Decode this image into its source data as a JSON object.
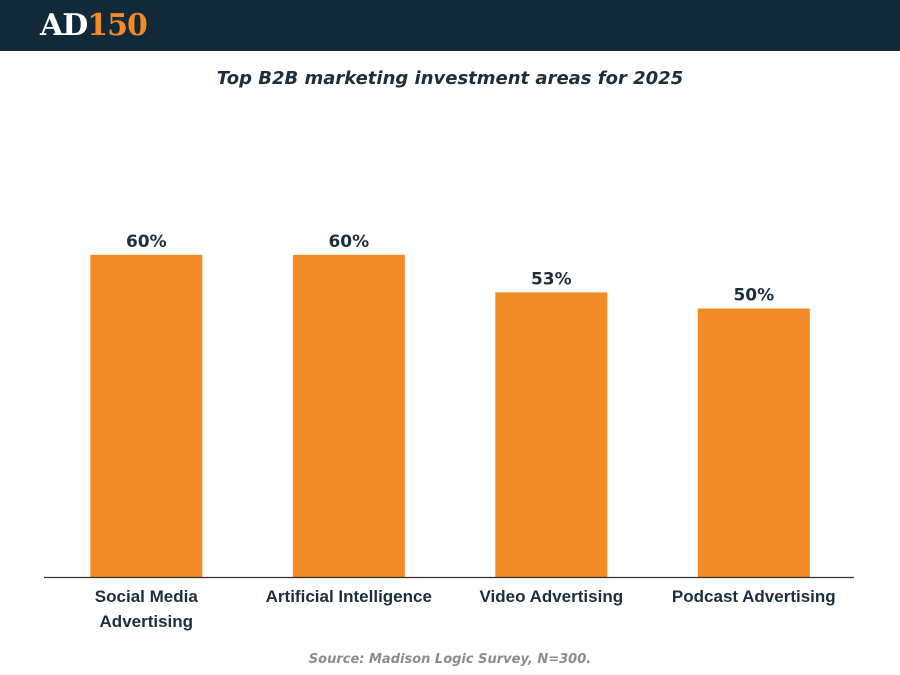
{
  "header": {
    "logo_primary": "AD",
    "logo_accent": "150",
    "background_color": "#12293a",
    "accent_color": "#f28a25"
  },
  "chart_data": {
    "type": "bar",
    "title": "Top B2B marketing investment areas for 2025",
    "categories": [
      [
        "Social Media",
        "Advertising"
      ],
      [
        "Artificial Intelligence"
      ],
      [
        "Video Advertising"
      ],
      [
        "Podcast Advertising"
      ]
    ],
    "values": [
      60,
      60,
      53,
      50
    ],
    "value_labels": [
      "60%",
      "60%",
      "53%",
      "50%"
    ],
    "unit": "%",
    "ylim": [
      0,
      100
    ],
    "bar_color": "#f28a25",
    "grid": false,
    "xlabel": "",
    "ylabel": ""
  },
  "footer": {
    "source": "Source: Madison Logic Survey, N=300."
  }
}
